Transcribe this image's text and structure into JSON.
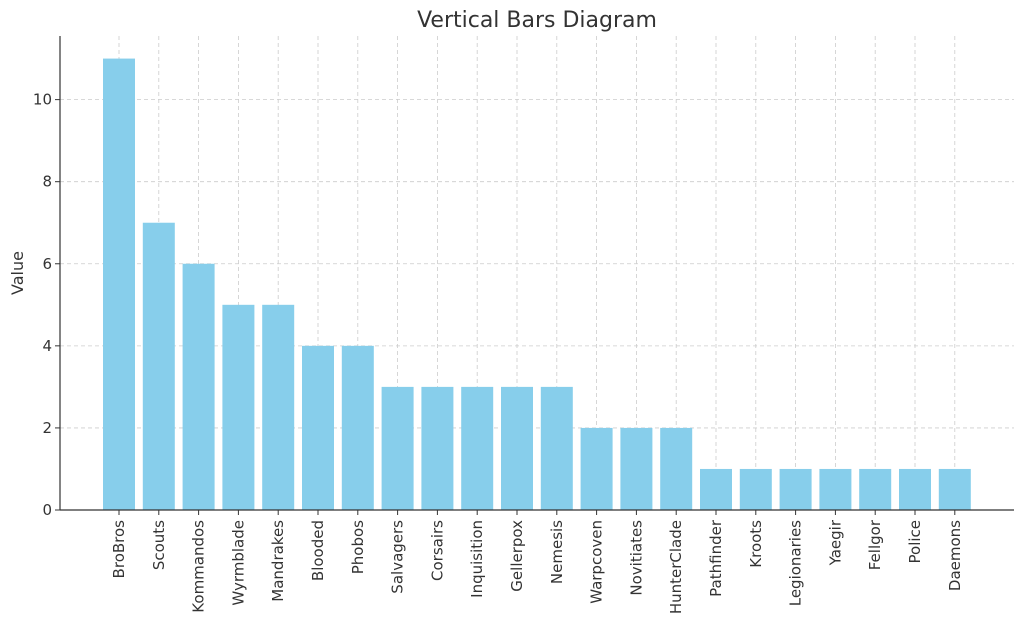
{
  "chart_data": {
    "type": "bar",
    "title": "Vertical Bars Diagram",
    "xlabel": "",
    "ylabel": "Value",
    "ylim": [
      0,
      11.55
    ],
    "yticks": [
      0,
      2,
      4,
      6,
      8,
      10
    ],
    "grid": true,
    "bar_color": "#87ceeb",
    "categories": [
      "BroBros",
      "Scouts",
      "Kommandos",
      "Wyrmblade",
      "Mandrakes",
      "Blooded",
      "Phobos",
      "Salvagers",
      "Corsairs",
      "Inquisition",
      "Gellerpox",
      "Nemesis",
      "Warpcoven",
      "Novitiates",
      "HunterClade",
      "Pathfinder",
      "Kroots",
      "Legionaries",
      "Yaegir",
      "Fellgor",
      "Police",
      "Daemons"
    ],
    "values": [
      11,
      7,
      6,
      5,
      5,
      4,
      4,
      3,
      3,
      3,
      3,
      3,
      2,
      2,
      2,
      1,
      1,
      1,
      1,
      1,
      1,
      1
    ]
  }
}
